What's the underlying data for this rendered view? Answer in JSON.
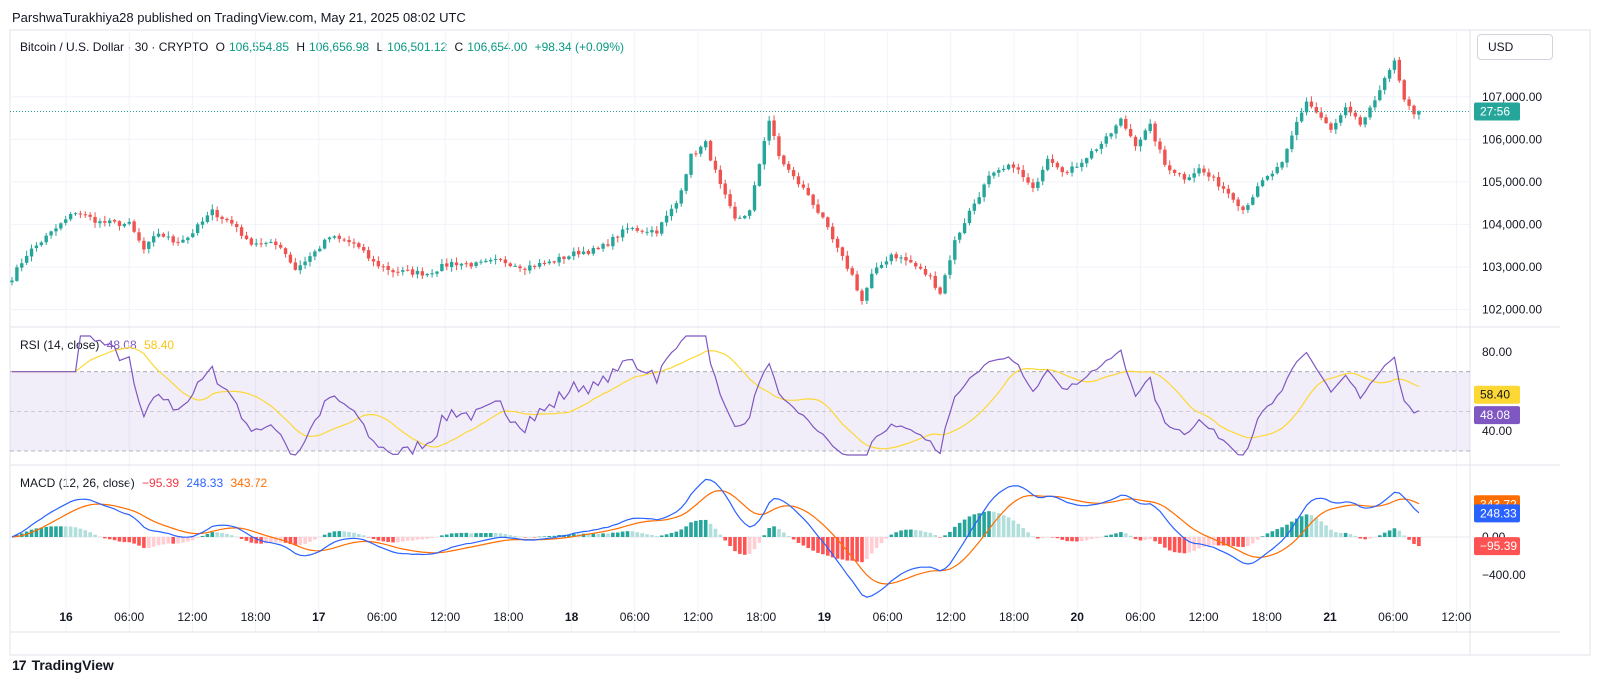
{
  "header": {
    "publisher_line": "ParshwaTurakhiya28 published on TradingView.com, May 21, 2025 08:02 UTC",
    "currency": "USD",
    "footer_brand": "TradingView",
    "footer_logo": "17"
  },
  "legend": {
    "symbol": "Bitcoin / U.S. Dollar · 30 · CRYPTO",
    "o_label": "O",
    "o_value": "106,554.85",
    "h_label": "H",
    "h_value": "106,656.98",
    "l_label": "L",
    "l_value": "106,501.12",
    "c_label": "C",
    "c_value": "106,654.00",
    "change": "+98.34 (+0.09%)",
    "price_tag": "27:56",
    "rsi_label": "RSI (14, close)",
    "rsi_value": "48.08",
    "rsi_ma_value": "58.40",
    "macd_label": "MACD (12, 26, close)",
    "macd_hist": "−95.39",
    "macd_value": "248.33",
    "macd_signal": "343.72"
  },
  "colors": {
    "up": "#26a69a",
    "down": "#ef5350",
    "rsi": "#7e57c2",
    "rsi_ma": "#fdd835",
    "macd": "#2962ff",
    "signal": "#ff6d00",
    "hist_up_strong": "#26a69a",
    "hist_up_weak": "#b2dfdb",
    "hist_down_strong": "#ff5252",
    "hist_down_weak": "#ffcdd2"
  },
  "chart_data": [
    {
      "type": "candlestick",
      "title": "Bitcoin / U.S. Dollar · 30 · CRYPTO",
      "x_tick_labels": [
        "16",
        "06:00",
        "12:00",
        "18:00",
        "17",
        "06:00",
        "12:00",
        "18:00",
        "18",
        "06:00",
        "12:00",
        "18:00",
        "19",
        "06:00",
        "12:00",
        "18:00",
        "20",
        "06:00",
        "12:00",
        "18:00",
        "21",
        "06:00",
        "12:00"
      ],
      "y_tick_labels": [
        "107,000.00",
        "106,000.00",
        "105,000.00",
        "104,000.00",
        "103,000.00",
        "102,000.00"
      ],
      "ylim": [
        101800,
        108100
      ],
      "last_price": 106654,
      "anchors": [
        [
          0,
          102750
        ],
        [
          3,
          103300
        ],
        [
          7,
          103700
        ],
        [
          13,
          104300
        ],
        [
          18,
          104050
        ],
        [
          24,
          104000
        ],
        [
          27,
          103400
        ],
        [
          30,
          103800
        ],
        [
          33,
          103600
        ],
        [
          36,
          103700
        ],
        [
          41,
          104300
        ],
        [
          46,
          103950
        ],
        [
          48,
          103600
        ],
        [
          55,
          103500
        ],
        [
          58,
          102950
        ],
        [
          62,
          103350
        ],
        [
          65,
          103700
        ],
        [
          70,
          103550
        ],
        [
          74,
          103100
        ],
        [
          78,
          102900
        ],
        [
          85,
          102850
        ],
        [
          90,
          103100
        ],
        [
          95,
          103050
        ],
        [
          100,
          103150
        ],
        [
          105,
          103000
        ],
        [
          110,
          103100
        ],
        [
          116,
          103350
        ],
        [
          120,
          103400
        ],
        [
          126,
          103900
        ],
        [
          132,
          103850
        ],
        [
          136,
          104500
        ],
        [
          139,
          105600
        ],
        [
          142,
          105900
        ],
        [
          145,
          104900
        ],
        [
          148,
          104100
        ],
        [
          151,
          104300
        ],
        [
          154,
          106000
        ],
        [
          155,
          106450
        ],
        [
          157,
          105600
        ],
        [
          160,
          105100
        ],
        [
          163,
          104700
        ],
        [
          166,
          104100
        ],
        [
          169,
          103400
        ],
        [
          172,
          102800
        ],
        [
          174,
          102200
        ],
        [
          176,
          102800
        ],
        [
          180,
          103300
        ],
        [
          184,
          103100
        ],
        [
          188,
          102750
        ],
        [
          190,
          102400
        ],
        [
          193,
          103600
        ],
        [
          196,
          104300
        ],
        [
          200,
          105100
        ],
        [
          205,
          105400
        ],
        [
          209,
          104800
        ],
        [
          212,
          105600
        ],
        [
          216,
          105200
        ],
        [
          220,
          105600
        ],
        [
          224,
          106000
        ],
        [
          227,
          106450
        ],
        [
          230,
          105900
        ],
        [
          233,
          106300
        ],
        [
          236,
          105400
        ],
        [
          240,
          105100
        ],
        [
          243,
          105300
        ],
        [
          247,
          104950
        ],
        [
          250,
          104650
        ],
        [
          252,
          104350
        ],
        [
          256,
          105000
        ],
        [
          260,
          105400
        ],
        [
          263,
          106400
        ],
        [
          265,
          106900
        ],
        [
          268,
          106500
        ],
        [
          270,
          106200
        ],
        [
          273,
          106700
        ],
        [
          276,
          106350
        ],
        [
          279,
          106850
        ],
        [
          281,
          107500
        ],
        [
          283,
          107800
        ],
        [
          285,
          106900
        ],
        [
          287,
          106550
        ],
        [
          288,
          106654
        ]
      ],
      "x_label_positions_note": "",
      "candle_count": 289
    },
    {
      "type": "line",
      "title": "RSI (14, close)",
      "y_tick_labels": [
        "80.00",
        "40.00"
      ],
      "ylim": [
        28,
        88
      ],
      "bands": [
        70,
        50,
        30
      ],
      "series": [
        {
          "name": "RSI",
          "value": 48.08
        },
        {
          "name": "RSI-based MA",
          "value": 58.4
        }
      ]
    },
    {
      "type": "bar+line",
      "title": "MACD (12, 26, close)",
      "y_tick_labels": [
        "0.00",
        "−400.00"
      ],
      "ylim": [
        -620,
        620
      ],
      "series": [
        {
          "name": "Histogram",
          "value": -95.39
        },
        {
          "name": "MACD",
          "value": 248.33
        },
        {
          "name": "Signal",
          "value": 343.72
        }
      ]
    }
  ]
}
